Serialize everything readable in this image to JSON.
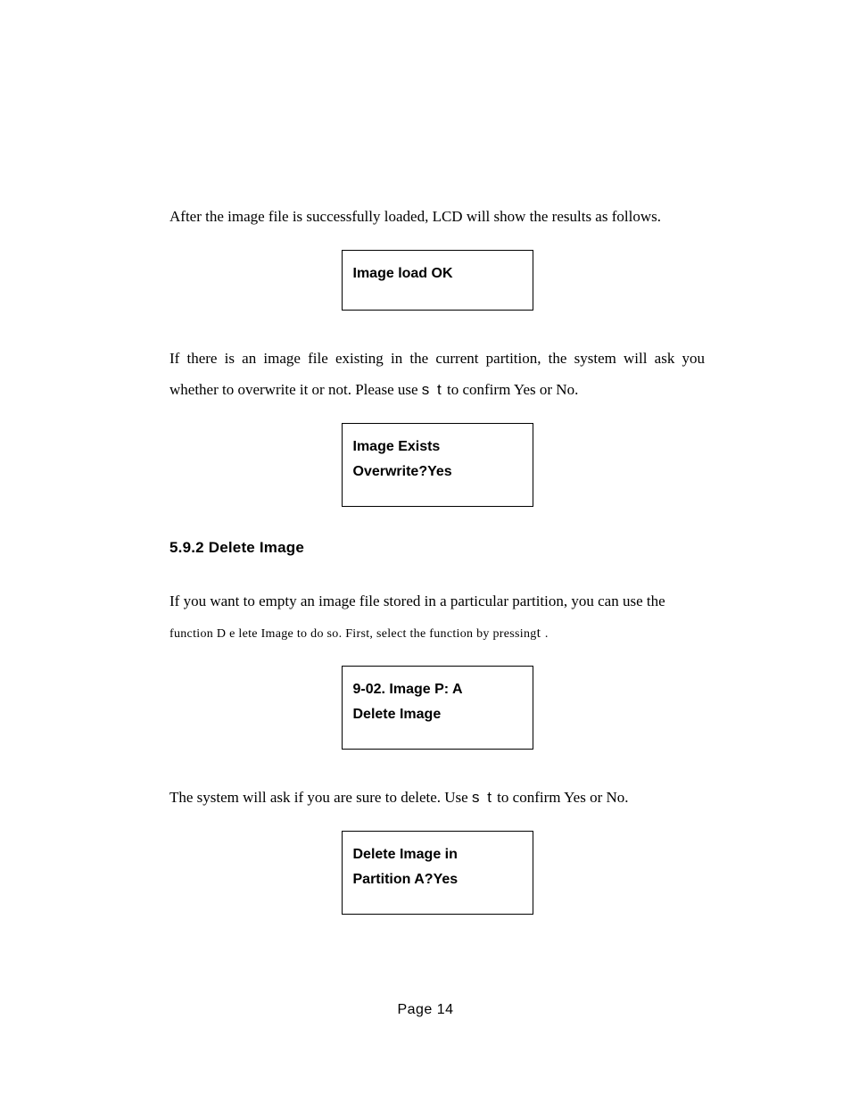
{
  "paragraphs": {
    "p1": "After the image file is successfully loaded, LCD will show the results as follows.",
    "p2_pre": "If there is an image file existing in the current partition, the system will ask you whether to overwrite it or not. Please use ",
    "p2_code": "s t",
    "p2_post": " to confirm Yes or No.",
    "p3_pre": "If you want to empty an image file stored in a particular partition, you can use the ",
    "p3_line2_pre": "function D e lete Image to do so. First, select the function by pressing",
    "p3_line2_code": "t",
    "p3_line2_post": " .",
    "p4_pre": "The system will ask if you are sure to delete. Use ",
    "p4_code": "s t",
    "p4_post": " to confirm Yes or No."
  },
  "lcd": {
    "box1_line1": "Image load OK",
    "box2_line1": "Image Exists",
    "box2_line2": "Overwrite?Yes",
    "box3_line1": "9-02. Image  P: A",
    "box3_line2": "Delete Image",
    "box4_line1": "Delete Image in",
    "box4_line2": "Partition A?Yes"
  },
  "heading": {
    "num": "5.9.2 ",
    "title": "Delete Image"
  },
  "footer": {
    "label": "Page 14"
  }
}
